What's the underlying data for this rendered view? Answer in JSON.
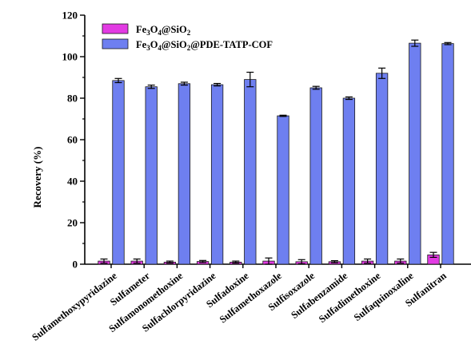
{
  "chart_data": {
    "type": "bar",
    "ylabel": "Recovery (%)",
    "xlabel": "",
    "ylim": [
      0,
      120
    ],
    "yticks": [
      0,
      20,
      40,
      60,
      80,
      100,
      120
    ],
    "grid": false,
    "legend_position": "top-left",
    "categories": [
      "Sulfamethoxypyridazine",
      "Sulfameter",
      "Sulfamonomethoxine",
      "Sulfachlorpyridazine",
      "Sulfadoxine",
      "Sulfamethoxazole",
      "Sulfisoxazole",
      "Sulfabenzamide",
      "Sulfadimethoxine",
      "Sulfaquinoxaline",
      "Sulfanitran"
    ],
    "series": [
      {
        "name": "Fe3O4@SiO2",
        "name_parts": [
          {
            "t": "Fe",
            "sub": false
          },
          {
            "t": "3",
            "sub": true
          },
          {
            "t": "O",
            "sub": false
          },
          {
            "t": "4",
            "sub": true
          },
          {
            "t": "@SiO",
            "sub": false
          },
          {
            "t": "2",
            "sub": true
          }
        ],
        "color": "#e23be3",
        "values": [
          1.5,
          1.5,
          1.0,
          1.3,
          1.0,
          1.5,
          1.2,
          1.2,
          1.5,
          1.5,
          4.5
        ],
        "errors": [
          1.0,
          1.0,
          0.5,
          0.5,
          0.5,
          1.5,
          1.0,
          0.5,
          1.0,
          1.0,
          1.2
        ]
      },
      {
        "name": "Fe3O4@SiO2@PDE-TATP-COF",
        "name_parts": [
          {
            "t": "Fe",
            "sub": false
          },
          {
            "t": "3",
            "sub": true
          },
          {
            "t": "O",
            "sub": false
          },
          {
            "t": "4",
            "sub": true
          },
          {
            "t": "@SiO",
            "sub": false
          },
          {
            "t": "2",
            "sub": true
          },
          {
            "t": "@PDE-TATP-COF",
            "sub": false
          }
        ],
        "color": "#6e7ff0",
        "values": [
          88.5,
          85.5,
          87.0,
          86.5,
          89.0,
          71.5,
          85.0,
          80.0,
          92.0,
          106.5,
          106.3
        ],
        "errors": [
          1.0,
          0.8,
          0.7,
          0.6,
          3.5,
          0.3,
          0.7,
          0.6,
          2.5,
          1.5,
          0.5
        ]
      }
    ]
  }
}
